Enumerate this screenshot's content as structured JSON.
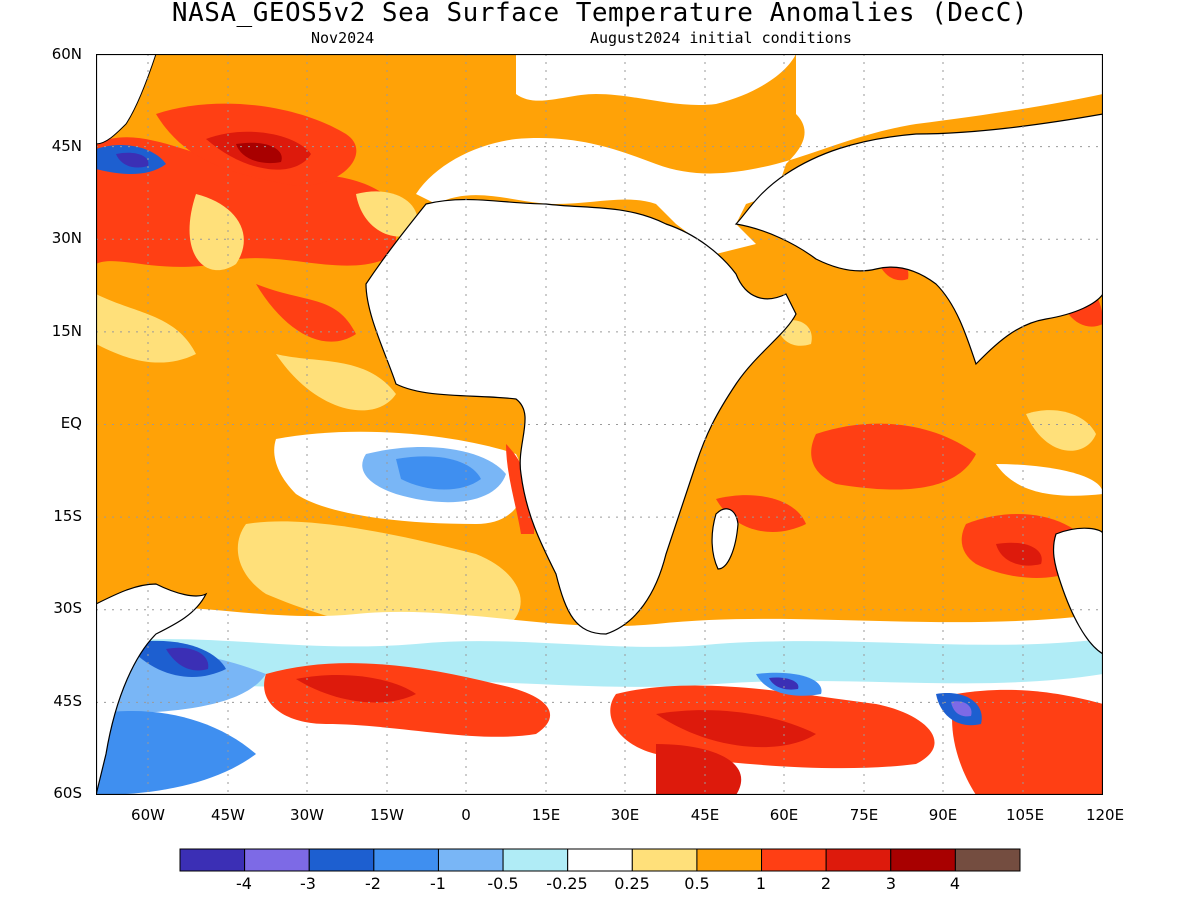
{
  "title": "NASA_GEOS5v2 Sea Surface Temperature Anomalies (DecC)",
  "subtitle_left": "Nov2024",
  "subtitle_right": "August2024 initial conditions",
  "lat_labels": [
    "60N",
    "45N",
    "30N",
    "15N",
    "EQ",
    "15S",
    "30S",
    "45S",
    "60S"
  ],
  "lon_labels": [
    "60W",
    "45W",
    "30W",
    "15W",
    "0",
    "15E",
    "30E",
    "45E",
    "60E",
    "75E",
    "90E",
    "105E",
    "120E"
  ],
  "colorbar": {
    "colors": [
      "#3b2fb5",
      "#7d6ae6",
      "#1d5fd0",
      "#3f8ff0",
      "#79b6f6",
      "#b0ecf6",
      "#ffffff",
      "#ffe07a",
      "#ffa207",
      "#ff3f14",
      "#dd1a0c",
      "#a80000",
      "#744d40"
    ],
    "labels": [
      "-4",
      "-3",
      "-2",
      "-1",
      "-0.5",
      "-0.25",
      "0.25",
      "0.5",
      "1",
      "2",
      "3",
      "4"
    ]
  },
  "map": {
    "land_color": "#ffffff",
    "grid": "dotted",
    "lat_range": [
      "60S",
      "60N"
    ],
    "lon_range": [
      "70W",
      "120E"
    ]
  }
}
